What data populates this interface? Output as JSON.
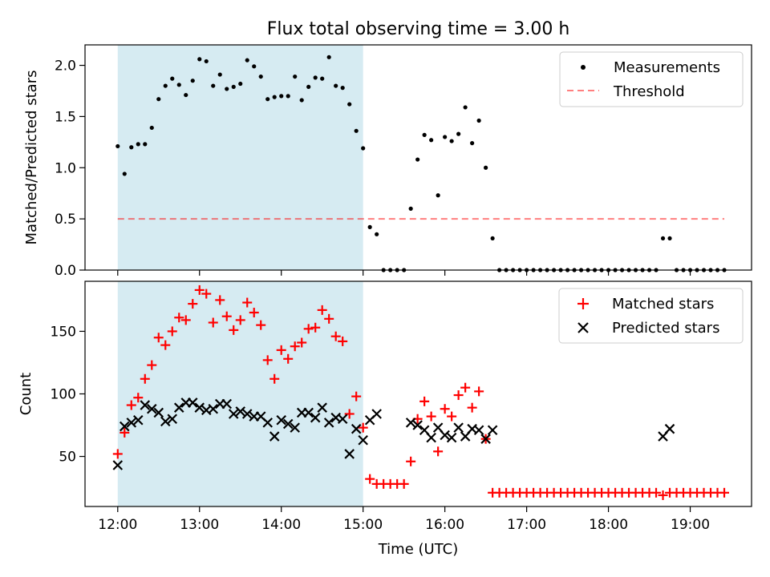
{
  "chart_data": {
    "title": "Flux total observing time = 3.00 h",
    "xlabel": "Time (UTC)",
    "x_ticks": [
      "12:00",
      "13:00",
      "14:00",
      "15:00",
      "16:00",
      "17:00",
      "18:00",
      "19:00"
    ],
    "x_range_hours": [
      11.6,
      19.75
    ],
    "colors": {
      "span": "#add8e6",
      "threshold": "#ff0000",
      "matched": "#ff0000",
      "predicted": "#000000",
      "measurement": "#000000"
    },
    "panels": [
      {
        "type": "scatter",
        "ylabel": "Matched/Predicted stars",
        "ylim": [
          0,
          2.2
        ],
        "y_ticks": [
          "0.0",
          "0.5",
          "1.0",
          "1.5",
          "2.0"
        ],
        "y_tick_values": [
          0,
          0.5,
          1.0,
          1.5,
          2.0
        ],
        "shaded_span": [
          "12:00",
          "15:00"
        ],
        "threshold": {
          "name": "Threshold",
          "value": 0.5,
          "x_start": "12:00",
          "x_end": "19:25"
        },
        "legend_position": "top-right",
        "series": [
          {
            "name": "Measurements",
            "marker": "dot",
            "x": [
              "12:00",
              "12:05",
              "12:10",
              "12:15",
              "12:20",
              "12:25",
              "12:30",
              "12:35",
              "12:40",
              "12:45",
              "12:50",
              "12:55",
              "13:00",
              "13:05",
              "13:10",
              "13:15",
              "13:20",
              "13:25",
              "13:30",
              "13:35",
              "13:40",
              "13:45",
              "13:50",
              "13:55",
              "14:00",
              "14:05",
              "14:10",
              "14:15",
              "14:20",
              "14:25",
              "14:30",
              "14:35",
              "14:40",
              "14:45",
              "14:50",
              "14:55",
              "15:00",
              "15:05",
              "15:10",
              "15:15",
              "15:20",
              "15:25",
              "15:30",
              "15:35",
              "15:40",
              "15:45",
              "15:50",
              "15:55",
              "16:00",
              "16:05",
              "16:10",
              "16:15",
              "16:20",
              "16:25",
              "16:30",
              "16:35",
              "16:40",
              "16:45",
              "16:50",
              "16:55",
              "17:00",
              "17:05",
              "17:10",
              "17:15",
              "17:20",
              "17:25",
              "17:30",
              "17:35",
              "17:40",
              "17:45",
              "17:50",
              "17:55",
              "18:00",
              "18:05",
              "18:10",
              "18:15",
              "18:20",
              "18:25",
              "18:30",
              "18:35",
              "18:40",
              "18:45",
              "18:50",
              "18:55",
              "19:00",
              "19:05",
              "19:10",
              "19:15",
              "19:20",
              "19:25"
            ],
            "y": [
              1.21,
              0.94,
              1.2,
              1.23,
              1.23,
              1.39,
              1.67,
              1.8,
              1.87,
              1.81,
              1.71,
              1.85,
              2.06,
              2.04,
              1.8,
              1.91,
              1.77,
              1.79,
              1.82,
              2.05,
              1.99,
              1.89,
              1.67,
              1.69,
              1.7,
              1.7,
              1.89,
              1.66,
              1.79,
              1.88,
              1.87,
              2.08,
              1.8,
              1.78,
              1.62,
              1.36,
              1.19,
              0.42,
              0.35,
              0,
              0,
              0,
              0,
              0.6,
              1.08,
              1.32,
              1.27,
              0.73,
              1.3,
              1.26,
              1.33,
              1.59,
              1.24,
              1.46,
              1.0,
              0.31,
              0,
              0,
              0,
              0,
              0,
              0,
              0,
              0,
              0,
              0,
              0,
              0,
              0,
              0,
              0,
              0,
              0,
              0,
              0,
              0,
              0,
              0,
              0,
              0,
              0.31,
              0.31,
              0,
              0,
              0,
              0,
              0,
              0,
              0,
              0
            ]
          }
        ]
      },
      {
        "type": "scatter",
        "ylabel": "Count",
        "ylim": [
          10,
          190
        ],
        "y_ticks": [
          "50",
          "100",
          "150"
        ],
        "y_tick_values": [
          50,
          100,
          150
        ],
        "shaded_span": [
          "12:00",
          "15:00"
        ],
        "legend_position": "top-right",
        "series": [
          {
            "name": "Matched stars",
            "marker": "plus",
            "x": [
              "12:00",
              "12:05",
              "12:10",
              "12:15",
              "12:20",
              "12:25",
              "12:30",
              "12:35",
              "12:40",
              "12:45",
              "12:50",
              "12:55",
              "13:00",
              "13:05",
              "13:10",
              "13:15",
              "13:20",
              "13:25",
              "13:30",
              "13:35",
              "13:40",
              "13:45",
              "13:50",
              "13:55",
              "14:00",
              "14:05",
              "14:10",
              "14:15",
              "14:20",
              "14:25",
              "14:30",
              "14:35",
              "14:40",
              "14:45",
              "14:50",
              "14:55",
              "15:00",
              "15:05",
              "15:10",
              "15:15",
              "15:20",
              "15:25",
              "15:30",
              "15:35",
              "15:40",
              "15:45",
              "15:50",
              "15:55",
              "16:00",
              "16:05",
              "16:10",
              "16:15",
              "16:20",
              "16:25",
              "16:30",
              "16:35",
              "16:40",
              "16:45",
              "16:50",
              "16:55",
              "17:00",
              "17:05",
              "17:10",
              "17:15",
              "17:20",
              "17:25",
              "17:30",
              "17:35",
              "17:40",
              "17:45",
              "17:50",
              "17:55",
              "18:00",
              "18:05",
              "18:10",
              "18:15",
              "18:20",
              "18:25",
              "18:30",
              "18:35",
              "18:40",
              "18:45",
              "18:50",
              "18:55",
              "19:00",
              "19:05",
              "19:10",
              "19:15",
              "19:20",
              "19:25"
            ],
            "y": [
              52,
              69,
              91,
              97,
              112,
              123,
              145,
              139,
              150,
              161,
              159,
              172,
              183,
              180,
              157,
              175,
              162,
              151,
              159,
              173,
              165,
              155,
              127,
              112,
              135,
              128,
              138,
              141,
              152,
              153,
              167,
              160,
              146,
              142,
              84,
              98,
              73,
              32,
              28,
              28,
              28,
              28,
              28,
              46,
              80,
              94,
              82,
              54,
              88,
              82,
              99,
              105,
              89,
              102,
              64,
              21,
              21,
              21,
              21,
              21,
              21,
              21,
              21,
              21,
              21,
              21,
              21,
              21,
              21,
              21,
              21,
              21,
              21,
              21,
              21,
              21,
              21,
              21,
              21,
              21,
              19,
              21,
              21,
              21,
              21,
              21,
              21,
              21,
              21,
              21
            ]
          },
          {
            "name": "Predicted stars",
            "marker": "x",
            "x": [
              "12:00",
              "12:05",
              "12:10",
              "12:15",
              "12:20",
              "12:25",
              "12:30",
              "12:35",
              "12:40",
              "12:45",
              "12:50",
              "12:55",
              "13:00",
              "13:05",
              "13:10",
              "13:15",
              "13:20",
              "13:25",
              "13:30",
              "13:35",
              "13:40",
              "13:45",
              "13:50",
              "13:55",
              "14:00",
              "14:05",
              "14:10",
              "14:15",
              "14:20",
              "14:25",
              "14:30",
              "14:35",
              "14:40",
              "14:45",
              "14:50",
              "14:55",
              "15:00",
              "15:05",
              "15:10",
              "15:35",
              "15:40",
              "15:45",
              "15:50",
              "15:55",
              "16:00",
              "16:05",
              "16:10",
              "16:15",
              "16:20",
              "16:25",
              "16:30",
              "16:35",
              "18:40",
              "18:45"
            ],
            "y": [
              43,
              74,
              77,
              79,
              91,
              88,
              85,
              78,
              80,
              89,
              93,
              93,
              89,
              87,
              88,
              92,
              92,
              84,
              86,
              84,
              82,
              82,
              77,
              66,
              79,
              76,
              73,
              85,
              85,
              81,
              89,
              77,
              81,
              80,
              52,
              72,
              63,
              79,
              84,
              77,
              75,
              71,
              65,
              73,
              67,
              65,
              73,
              66,
              72,
              71,
              64,
              71,
              66,
              72
            ]
          }
        ]
      }
    ]
  }
}
